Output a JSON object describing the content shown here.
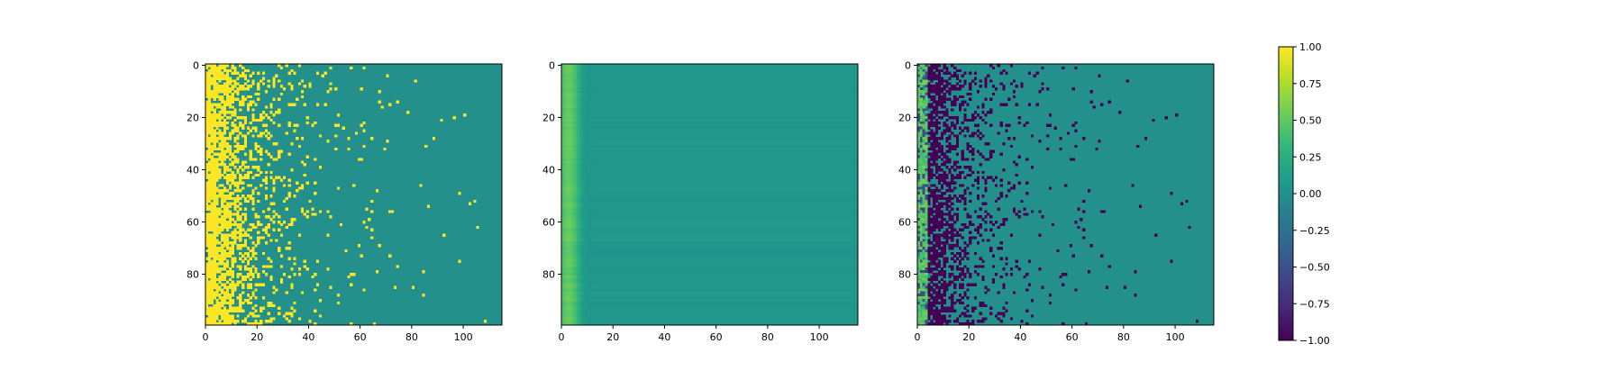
{
  "figure": {
    "colors": {
      "background": "#ffffff",
      "axis": "#000000",
      "viridis_stops": [
        "#440154",
        "#482878",
        "#3e4989",
        "#31688e",
        "#26828e",
        "#1f9e89",
        "#35b779",
        "#6ece58",
        "#b5de2b",
        "#fde725"
      ]
    }
  },
  "chart_data": [
    {
      "type": "heatmap",
      "title": "",
      "xlabel": "",
      "ylabel": "",
      "n_rows": 100,
      "n_cols": 115,
      "xlim": [
        0,
        115
      ],
      "ylim": [
        100,
        0
      ],
      "x_ticks": [
        0,
        20,
        40,
        60,
        80,
        100
      ],
      "y_ticks": [
        0,
        20,
        40,
        60,
        80
      ],
      "value_range": [
        -1,
        1
      ],
      "pattern": "binary mask: many cells = 1.0 in columns 0-15, increasingly sparse toward ~column 90, remaining cells = 0.0; a few sparse hits extend to column 105",
      "sample_rows": [
        {
          "row": 0,
          "active_cols": [
            0,
            1,
            2,
            3,
            4,
            5,
            6,
            7,
            8,
            9,
            12,
            13,
            15,
            17,
            19,
            22,
            24,
            26,
            28,
            31,
            33,
            44,
            51,
            63,
            84,
            105
          ]
        },
        {
          "row": 20,
          "active_cols": [
            0,
            1,
            2,
            3,
            4,
            5,
            6,
            7,
            9,
            11,
            13,
            16,
            18,
            19,
            20,
            22,
            23,
            24,
            29,
            32,
            43,
            48,
            57,
            65,
            73,
            84,
            96
          ]
        },
        {
          "row": 60,
          "active_cols": [
            0,
            1,
            2,
            3,
            4,
            5,
            6,
            7,
            8,
            9,
            10,
            12,
            13,
            14,
            17,
            18,
            20,
            22,
            24,
            26,
            30,
            36,
            56,
            66,
            67,
            77,
            86,
            104,
            107
          ]
        },
        {
          "row": 90,
          "active_cols": [
            0,
            1,
            2,
            3,
            4,
            5,
            6,
            7,
            8,
            10,
            12,
            13,
            15,
            17,
            18,
            20,
            22,
            23,
            25,
            28,
            30,
            34,
            39,
            45
          ]
        }
      ]
    },
    {
      "type": "heatmap",
      "title": "",
      "xlabel": "",
      "ylabel": "",
      "n_rows": 100,
      "n_cols": 115,
      "xlim": [
        0,
        115
      ],
      "ylim": [
        100,
        0
      ],
      "x_ticks": [
        0,
        20,
        40,
        60,
        80,
        100
      ],
      "y_ticks": [
        0,
        20,
        40,
        60,
        80
      ],
      "value_range": [
        -1,
        1
      ],
      "pattern": "smooth field: values about 0.40-0.55 in columns 0-5, fading to about 0.0-0.10 by column 8, near 0.05 for the rest of the row with faint per-row banding",
      "column_profile": [
        0.42,
        0.48,
        0.52,
        0.5,
        0.45,
        0.38,
        0.28,
        0.18,
        0.1,
        0.06,
        0.05,
        0.04
      ]
    },
    {
      "type": "heatmap",
      "title": "",
      "xlabel": "",
      "ylabel": "",
      "n_rows": 100,
      "n_cols": 115,
      "xlim": [
        0,
        115
      ],
      "ylim": [
        100,
        0
      ],
      "x_ticks": [
        0,
        20,
        40,
        60,
        80,
        100
      ],
      "y_ticks": [
        0,
        20,
        40,
        60,
        80
      ],
      "value_range": [
        -1,
        1
      ],
      "pattern": "difference field: columns 0-3 mostly 0.3-0.6 with some -0.4 to -0.6 cells; columns 4-40 scattered -1.0 cells (dense near columns 6-15); remaining cells 0.0; sparse -1.0 cells out to column 107"
    }
  ],
  "colorbar": {
    "cmap": "viridis",
    "range": [
      -1.0,
      1.0
    ],
    "tick_values": [
      1.0,
      0.75,
      0.5,
      0.25,
      0.0,
      -0.25,
      -0.5,
      -0.75,
      -1.0
    ],
    "tick_labels": [
      "1.00",
      "0.75",
      "0.50",
      "0.25",
      "0.00",
      "−0.25",
      "−0.50",
      "−0.75",
      "−1.00"
    ]
  }
}
